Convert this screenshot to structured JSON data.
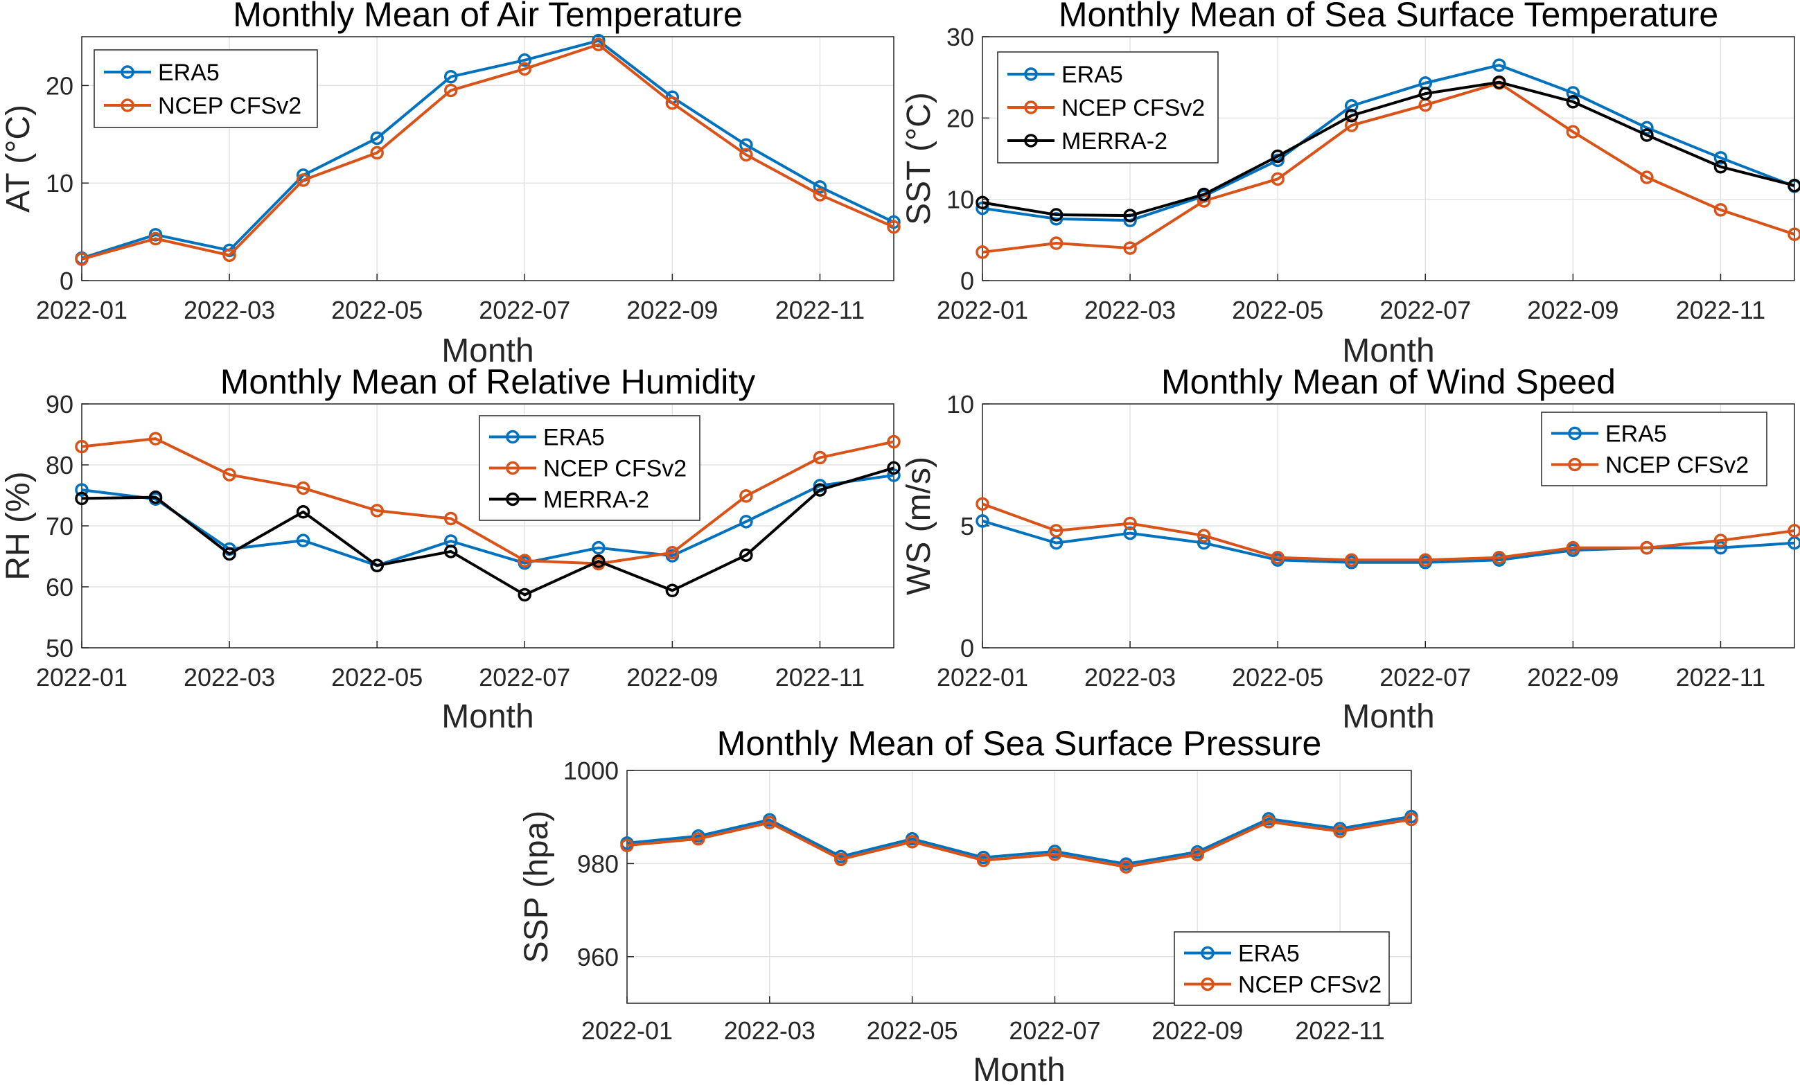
{
  "chart_data": [
    {
      "type": "line",
      "title": "Monthly Mean of Air Temperature",
      "xlabel": "Month",
      "ylabel": "AT (°C)",
      "categories": [
        "2022-01",
        "2022-02",
        "2022-03",
        "2022-04",
        "2022-05",
        "2022-06",
        "2022-07",
        "2022-08",
        "2022-09",
        "2022-10",
        "2022-11",
        "2022-12"
      ],
      "xticks": [
        "2022-01",
        "2022-03",
        "2022-05",
        "2022-07",
        "2022-09",
        "2022-11"
      ],
      "ylim": [
        0,
        25
      ],
      "yticks": [
        0,
        10,
        20
      ],
      "grid": true,
      "legend_position": "top-left",
      "series": [
        {
          "name": "ERA5",
          "color": "#0072BD",
          "values": [
            2.3,
            4.7,
            3.1,
            10.8,
            14.6,
            20.9,
            22.6,
            24.6,
            18.8,
            13.9,
            9.6,
            6.0
          ]
        },
        {
          "name": "NCEP CFSv2",
          "color": "#D95319",
          "values": [
            2.2,
            4.3,
            2.6,
            10.3,
            13.1,
            19.5,
            21.7,
            24.2,
            18.2,
            12.9,
            8.8,
            5.5
          ]
        }
      ]
    },
    {
      "type": "line",
      "title": "Monthly Mean of Sea Surface Temperature",
      "xlabel": "Month",
      "ylabel": "SST (°C)",
      "categories": [
        "2022-01",
        "2022-02",
        "2022-03",
        "2022-04",
        "2022-05",
        "2022-06",
        "2022-07",
        "2022-08",
        "2022-09",
        "2022-10",
        "2022-11",
        "2022-12"
      ],
      "xticks": [
        "2022-01",
        "2022-03",
        "2022-05",
        "2022-07",
        "2022-09",
        "2022-11"
      ],
      "ylim": [
        0,
        30
      ],
      "yticks": [
        0,
        10,
        20,
        30
      ],
      "grid": true,
      "legend_position": "top-left",
      "series": [
        {
          "name": "ERA5",
          "color": "#0072BD",
          "values": [
            8.9,
            7.6,
            7.4,
            10.4,
            14.8,
            21.5,
            24.3,
            26.5,
            23.1,
            18.8,
            15.1,
            11.6
          ]
        },
        {
          "name": "NCEP CFSv2",
          "color": "#D95319",
          "values": [
            3.5,
            4.6,
            4.0,
            9.8,
            12.5,
            19.1,
            21.6,
            24.3,
            18.3,
            12.7,
            8.7,
            5.7
          ]
        },
        {
          "name": "MERRA-2",
          "color": "#000000",
          "values": [
            9.6,
            8.1,
            8.0,
            10.6,
            15.3,
            20.3,
            23.0,
            24.4,
            22.0,
            17.9,
            14.0,
            11.7
          ]
        }
      ]
    },
    {
      "type": "line",
      "title": "Monthly Mean of Relative Humidity",
      "xlabel": "Month",
      "ylabel": "RH (%)",
      "categories": [
        "2022-01",
        "2022-02",
        "2022-03",
        "2022-04",
        "2022-05",
        "2022-06",
        "2022-07",
        "2022-08",
        "2022-09",
        "2022-10",
        "2022-11",
        "2022-12"
      ],
      "xticks": [
        "2022-01",
        "2022-03",
        "2022-05",
        "2022-07",
        "2022-09",
        "2022-11"
      ],
      "ylim": [
        50,
        90
      ],
      "yticks": [
        50,
        60,
        70,
        80,
        90
      ],
      "grid": true,
      "legend_position": "top-center",
      "series": [
        {
          "name": "ERA5",
          "color": "#0072BD",
          "values": [
            75.9,
            74.4,
            66.2,
            67.6,
            63.5,
            67.5,
            63.9,
            66.4,
            65.1,
            70.7,
            76.6,
            78.3
          ]
        },
        {
          "name": "NCEP CFSv2",
          "color": "#D95319",
          "values": [
            83.0,
            84.3,
            78.4,
            76.2,
            72.5,
            71.2,
            64.3,
            63.8,
            65.6,
            74.9,
            81.2,
            83.8
          ]
        },
        {
          "name": "MERRA-2",
          "color": "#000000",
          "values": [
            74.5,
            74.7,
            65.4,
            72.3,
            63.5,
            65.8,
            58.7,
            64.2,
            59.4,
            65.2,
            75.9,
            79.5
          ]
        }
      ]
    },
    {
      "type": "line",
      "title": "Monthly Mean of Wind Speed",
      "xlabel": "Month",
      "ylabel": "WS (m/s)",
      "categories": [
        "2022-01",
        "2022-02",
        "2022-03",
        "2022-04",
        "2022-05",
        "2022-06",
        "2022-07",
        "2022-08",
        "2022-09",
        "2022-10",
        "2022-11",
        "2022-12"
      ],
      "xticks": [
        "2022-01",
        "2022-03",
        "2022-05",
        "2022-07",
        "2022-09",
        "2022-11"
      ],
      "ylim": [
        0,
        10
      ],
      "yticks": [
        0,
        5,
        10
      ],
      "grid": true,
      "legend_position": "top-right",
      "series": [
        {
          "name": "ERA5",
          "color": "#0072BD",
          "values": [
            5.2,
            4.3,
            4.7,
            4.3,
            3.6,
            3.5,
            3.5,
            3.6,
            4.0,
            4.1,
            4.1,
            4.3
          ]
        },
        {
          "name": "NCEP CFSv2",
          "color": "#D95319",
          "values": [
            5.9,
            4.8,
            5.1,
            4.6,
            3.7,
            3.6,
            3.6,
            3.7,
            4.1,
            4.1,
            4.4,
            4.8
          ]
        }
      ]
    },
    {
      "type": "line",
      "title": "Monthly Mean of Sea Surface Pressure",
      "xlabel": "Month",
      "ylabel": "SSP (hpa)",
      "categories": [
        "2022-01",
        "2022-02",
        "2022-03",
        "2022-04",
        "2022-05",
        "2022-06",
        "2022-07",
        "2022-08",
        "2022-09",
        "2022-10",
        "2022-11",
        "2022-12"
      ],
      "xticks": [
        "2022-01",
        "2022-03",
        "2022-05",
        "2022-07",
        "2022-09",
        "2022-11"
      ],
      "ylim": [
        950,
        1000
      ],
      "yticks": [
        960,
        980,
        1000
      ],
      "grid": true,
      "legend_position": "bottom-right",
      "series": [
        {
          "name": "ERA5",
          "color": "#0072BD",
          "values": [
            984.4,
            985.9,
            989.4,
            981.5,
            985.3,
            981.3,
            982.6,
            979.9,
            982.5,
            989.6,
            987.5,
            990.1
          ]
        },
        {
          "name": "NCEP CFSv2",
          "color": "#D95319",
          "values": [
            983.9,
            985.3,
            988.8,
            980.9,
            984.7,
            980.7,
            982.0,
            979.3,
            981.9,
            989.0,
            986.9,
            989.5
          ]
        }
      ]
    }
  ]
}
